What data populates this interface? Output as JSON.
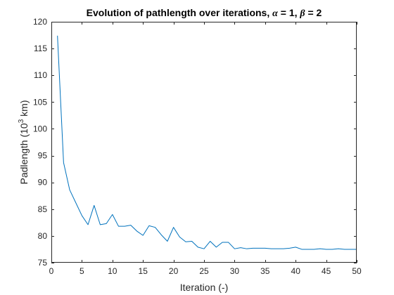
{
  "chart_data": {
    "type": "line",
    "title": {
      "prefix": "Evolution of pathlength over iterations, ",
      "alpha_symbol": "α",
      "alpha_value": " = 1, ",
      "beta_symbol": "β",
      "beta_value": " = 2"
    },
    "xlabel": "Iteration (-)",
    "ylabel": {
      "prefix": "Padlength (10",
      "superscript": "3",
      "suffix": " km)"
    },
    "xlim": [
      0,
      50
    ],
    "ylim": [
      75,
      120
    ],
    "x_ticks": [
      0,
      5,
      10,
      15,
      20,
      25,
      30,
      35,
      40,
      45,
      50
    ],
    "y_ticks": [
      75,
      80,
      85,
      90,
      95,
      100,
      105,
      110,
      115,
      120
    ],
    "grid": false,
    "line_color": "#0072BD",
    "series": [
      {
        "x": [
          1,
          2,
          3,
          4,
          5,
          6,
          7,
          8,
          9,
          10,
          11,
          12,
          13,
          14,
          15,
          16,
          17,
          18,
          19,
          20,
          21,
          22,
          23,
          24,
          25,
          26,
          27,
          28,
          29,
          30,
          31,
          32,
          33,
          34,
          35,
          36,
          37,
          38,
          39,
          40,
          41,
          42,
          43,
          44,
          45,
          46,
          47,
          48,
          49,
          50
        ],
        "values": [
          117.4,
          93.7,
          88.6,
          86.2,
          83.8,
          82.1,
          85.7,
          82.1,
          82.3,
          84.0,
          81.8,
          81.8,
          82.0,
          80.9,
          80.1,
          81.9,
          81.6,
          80.2,
          79.0,
          81.6,
          79.8,
          78.9,
          79.0,
          77.9,
          77.6,
          79.0,
          77.9,
          78.8,
          78.8,
          77.6,
          77.8,
          77.6,
          77.7,
          77.7,
          77.7,
          77.6,
          77.6,
          77.6,
          77.7,
          77.9,
          77.5,
          77.5,
          77.5,
          77.6,
          77.5,
          77.5,
          77.6,
          77.5,
          77.5,
          77.5
        ]
      }
    ]
  }
}
